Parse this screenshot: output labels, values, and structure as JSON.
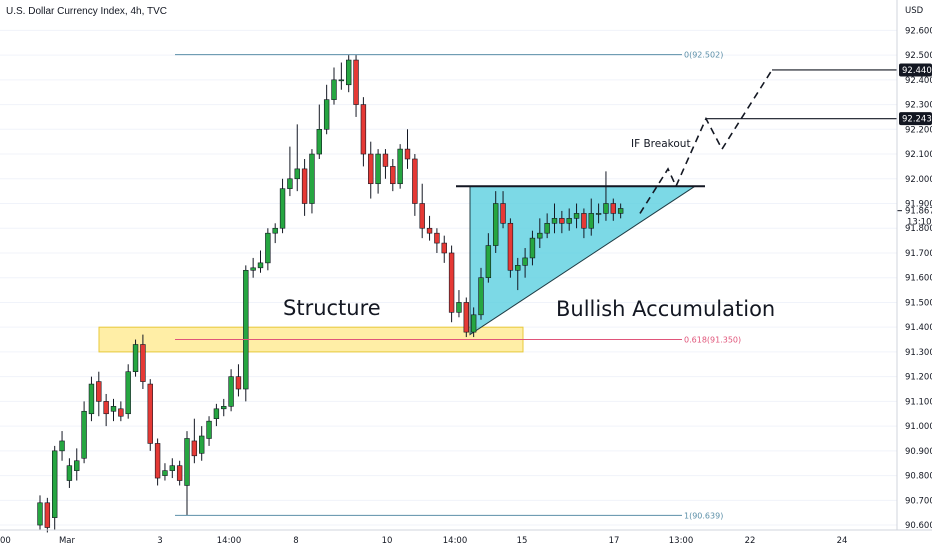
{
  "chart_data": {
    "type": "candlestick",
    "title": "U.S. Dollar Currency Index, 4h, TVC",
    "currency": "USD",
    "y_ticks": [
      90.6,
      90.7,
      90.8,
      90.9,
      91.0,
      91.1,
      91.2,
      91.3,
      91.4,
      91.5,
      91.6,
      91.7,
      91.8,
      91.9,
      92.0,
      92.1,
      92.2,
      92.3,
      92.4,
      92.5,
      92.6
    ],
    "y_tick_labels": [
      "90.600",
      "90.700",
      "90.800",
      "90.900",
      "91.000",
      "91.100",
      "91.200",
      "91.300",
      "91.400",
      "91.500",
      "91.600",
      "91.700",
      "91.800",
      "91.900",
      "92.000",
      "92.100",
      "92.200",
      "92.300",
      "92.400",
      "92.500",
      "92.600"
    ],
    "ylim": [
      90.58,
      92.65
    ],
    "x_tick_labels": [
      ":00",
      "Mar",
      "3",
      "14:00",
      "8",
      "10",
      "14:00",
      "15",
      "17",
      "13:00",
      "22",
      "24"
    ],
    "current_price": {
      "value": "91.867",
      "countdown": "13:10"
    },
    "price_tags": [
      {
        "label": "92.440",
        "value": 92.44
      },
      {
        "label": "92.243",
        "value": 92.243
      }
    ],
    "candles": [
      [
        90.6,
        90.69,
        90.58,
        90.72
      ],
      [
        90.69,
        90.59,
        90.57,
        90.71
      ],
      [
        90.63,
        90.9,
        90.58,
        90.92
      ],
      [
        90.9,
        90.94,
        90.86,
        90.98
      ],
      [
        90.78,
        90.84,
        90.75,
        90.87
      ],
      [
        90.82,
        90.86,
        90.78,
        90.91
      ],
      [
        90.87,
        91.06,
        90.85,
        91.1
      ],
      [
        91.05,
        91.17,
        91.02,
        91.2
      ],
      [
        91.18,
        91.1,
        91.04,
        91.22
      ],
      [
        91.1,
        91.05,
        91.0,
        91.13
      ],
      [
        91.06,
        91.08,
        91.02,
        91.11
      ],
      [
        91.07,
        91.04,
        91.02,
        91.1
      ],
      [
        91.05,
        91.22,
        91.03,
        91.25
      ],
      [
        91.22,
        91.33,
        91.2,
        91.35
      ],
      [
        91.33,
        91.18,
        91.15,
        91.37
      ],
      [
        91.17,
        90.93,
        90.9,
        91.19
      ],
      [
        90.93,
        90.79,
        90.76,
        90.95
      ],
      [
        90.8,
        90.82,
        90.78,
        90.85
      ],
      [
        90.82,
        90.84,
        90.79,
        90.87
      ],
      [
        90.84,
        90.78,
        90.76,
        90.86
      ],
      [
        90.76,
        90.95,
        90.64,
        90.98
      ],
      [
        90.94,
        90.88,
        90.85,
        91.03
      ],
      [
        90.89,
        90.96,
        90.86,
        91.0
      ],
      [
        90.95,
        91.02,
        90.92,
        91.04
      ],
      [
        91.03,
        91.07,
        91.0,
        91.09
      ],
      [
        91.07,
        91.08,
        91.04,
        91.11
      ],
      [
        91.08,
        91.2,
        91.06,
        91.23
      ],
      [
        91.2,
        91.15,
        91.12,
        91.25
      ],
      [
        91.15,
        91.63,
        91.1,
        91.65
      ],
      [
        91.63,
        91.64,
        91.6,
        91.68
      ],
      [
        91.64,
        91.66,
        91.62,
        91.71
      ],
      [
        91.66,
        91.78,
        91.63,
        91.8
      ],
      [
        91.78,
        91.8,
        91.74,
        91.82
      ],
      [
        91.8,
        91.96,
        91.78,
        92.0
      ],
      [
        91.96,
        92.0,
        91.93,
        92.13
      ],
      [
        92.0,
        92.04,
        91.95,
        92.22
      ],
      [
        92.04,
        91.9,
        91.85,
        92.08
      ],
      [
        91.9,
        92.1,
        91.86,
        92.12
      ],
      [
        92.1,
        92.2,
        92.08,
        92.3
      ],
      [
        92.2,
        92.32,
        92.18,
        92.38
      ],
      [
        92.32,
        92.4,
        92.3,
        92.45
      ],
      [
        92.4,
        92.4,
        92.36,
        92.47
      ],
      [
        92.38,
        92.48,
        92.35,
        92.5
      ],
      [
        92.48,
        92.3,
        92.25,
        92.5
      ],
      [
        92.3,
        92.1,
        92.05,
        92.33
      ],
      [
        92.1,
        91.98,
        91.92,
        92.15
      ],
      [
        91.98,
        92.1,
        91.94,
        92.12
      ],
      [
        92.1,
        92.05,
        92.0,
        92.12
      ],
      [
        92.05,
        91.98,
        91.95,
        92.08
      ],
      [
        91.98,
        92.12,
        91.96,
        92.14
      ],
      [
        92.12,
        92.08,
        92.04,
        92.2
      ],
      [
        92.08,
        91.9,
        91.85,
        92.1
      ],
      [
        91.9,
        91.8,
        91.76,
        91.98
      ],
      [
        91.8,
        91.78,
        91.75,
        91.85
      ],
      [
        91.78,
        91.74,
        91.7,
        91.8
      ],
      [
        91.74,
        91.7,
        91.66,
        91.77
      ],
      [
        91.7,
        91.46,
        91.42,
        91.73
      ],
      [
        91.46,
        91.5,
        91.44,
        91.55
      ],
      [
        91.5,
        91.38,
        91.36,
        91.52
      ],
      [
        91.38,
        91.45,
        91.36,
        91.48
      ],
      [
        91.45,
        91.6,
        91.43,
        91.64
      ],
      [
        91.6,
        91.73,
        91.58,
        91.78
      ],
      [
        91.73,
        91.9,
        91.7,
        91.95
      ],
      [
        91.9,
        91.82,
        91.8,
        91.95
      ],
      [
        91.82,
        91.63,
        91.6,
        91.84
      ],
      [
        91.63,
        91.65,
        91.55,
        91.68
      ],
      [
        91.65,
        91.68,
        91.6,
        91.72
      ],
      [
        91.68,
        91.76,
        91.65,
        91.79
      ],
      [
        91.76,
        91.78,
        91.72,
        91.84
      ],
      [
        91.78,
        91.82,
        91.76,
        91.86
      ],
      [
        91.82,
        91.84,
        91.78,
        91.9
      ],
      [
        91.84,
        91.82,
        91.78,
        91.87
      ],
      [
        91.82,
        91.84,
        91.79,
        91.88
      ],
      [
        91.84,
        91.86,
        91.8,
        91.9
      ],
      [
        91.86,
        91.8,
        91.76,
        91.88
      ],
      [
        91.8,
        91.86,
        91.77,
        91.92
      ],
      [
        91.86,
        91.86,
        91.82,
        91.9
      ],
      [
        91.86,
        91.9,
        91.83,
        92.03
      ],
      [
        91.9,
        91.86,
        91.83,
        91.92
      ],
      [
        91.86,
        91.88,
        91.84,
        91.9
      ]
    ],
    "horizontal_lines": [
      {
        "label": "0(92.502)",
        "value": 92.502,
        "color": "#5b8fa8"
      },
      {
        "label": "0.618(91.350)",
        "value": 91.35,
        "color": "#e0557a"
      },
      {
        "label": "1(90.639)",
        "value": 90.639,
        "color": "#5b8fa8"
      }
    ],
    "annotations": {
      "structure": "Structure",
      "bullish_accumulation": "Bullish Accumulation",
      "if_breakout": "IF Breakout"
    },
    "colors": {
      "up": "#26a641",
      "down": "#e53935",
      "zone_fill": "#ffe36a",
      "triangle_fill": "#5bd0e0",
      "grid": "#f0f3fa"
    }
  }
}
